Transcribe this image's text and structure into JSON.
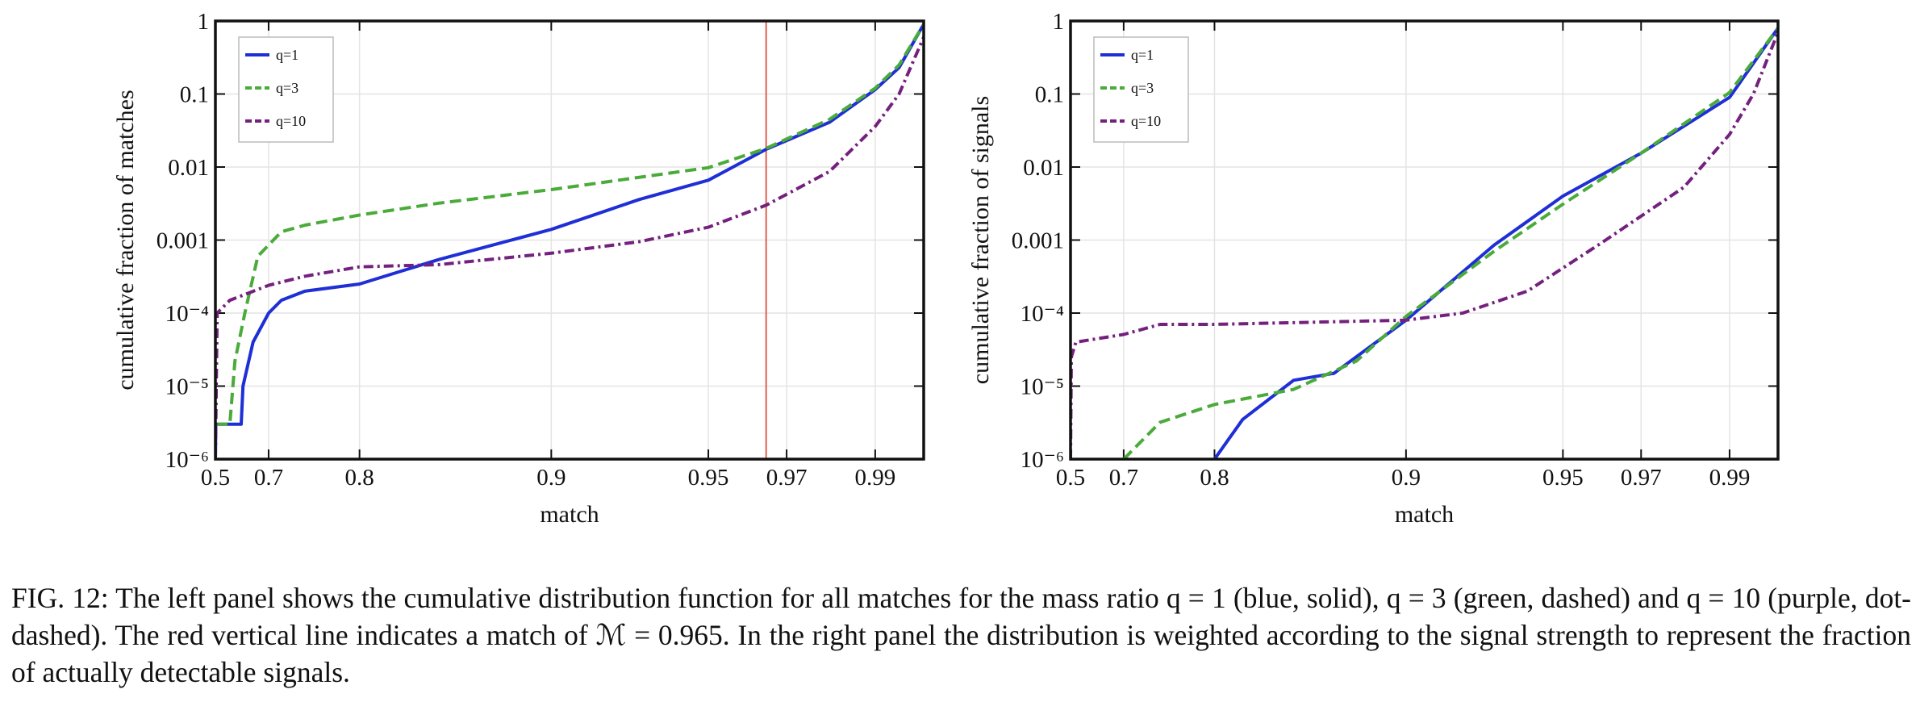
{
  "chart_data": [
    {
      "type": "line",
      "xlabel": "match",
      "ylabel": "cumulative fraction of matches",
      "xlim": [
        0.5,
        1
      ],
      "xscale": "power",
      "xpower": 7,
      "xticks": [
        0.5,
        0.7,
        0.8,
        0.9,
        0.95,
        0.97,
        0.99
      ],
      "ylim": [
        1e-06,
        1
      ],
      "yscale": "log",
      "yticks": [
        1,
        0.1,
        0.01,
        0.001,
        {
          "value": 0.0001,
          "label": "10⁻⁴"
        },
        {
          "value": 1e-05,
          "label": "10⁻⁵"
        },
        {
          "value": 1e-06,
          "label": "10⁻⁶"
        }
      ],
      "grid": true,
      "legend": "upper left",
      "vline": 0.965,
      "vline_color": "#e0503c",
      "series": [
        {
          "name": "q=1",
          "color": "#1f2fd6",
          "dash": "solid",
          "x": [
            0.5,
            0.505,
            0.64,
            0.645,
            0.67,
            0.7,
            0.72,
            0.75,
            0.8,
            0.85,
            0.9,
            0.93,
            0.95,
            0.965,
            0.98,
            0.99,
            0.995,
            1.0
          ],
          "values": [
            1e-06,
            3e-06,
            3e-06,
            1e-05,
            4e-05,
            0.0001,
            0.00015,
            0.0002,
            0.00025,
            0.00054,
            0.0014,
            0.0036,
            0.0066,
            0.0175,
            0.041,
            0.115,
            0.23,
            0.9
          ]
        },
        {
          "name": "q=3",
          "color": "#4aab3a",
          "dash": "dashed",
          "x": [
            0.51,
            0.6,
            0.62,
            0.65,
            0.68,
            0.72,
            0.75,
            0.8,
            0.85,
            0.9,
            0.95,
            0.965,
            0.98,
            0.99,
            0.995,
            1.0
          ],
          "values": [
            3e-06,
            3e-06,
            2.2e-05,
            0.0001,
            0.0006,
            0.0013,
            0.0016,
            0.0022,
            0.0032,
            0.0049,
            0.0098,
            0.018,
            0.045,
            0.12,
            0.25,
            0.9
          ]
        },
        {
          "name": "q=10",
          "color": "#74217e",
          "dash": "dotdash",
          "x": [
            0.5,
            0.52,
            0.6,
            0.7,
            0.75,
            0.8,
            0.85,
            0.9,
            0.93,
            0.95,
            0.965,
            0.98,
            0.99,
            0.995,
            1.0
          ],
          "values": [
            1e-06,
            0.0001,
            0.00015,
            0.00024,
            0.00032,
            0.00043,
            0.00046,
            0.00066,
            0.00095,
            0.0015,
            0.003,
            0.0087,
            0.036,
            0.1,
            0.6
          ]
        }
      ]
    },
    {
      "type": "line",
      "xlabel": "match",
      "ylabel": "cumulative fraction of signals",
      "xlim": [
        0.5,
        1
      ],
      "xscale": "power",
      "xpower": 7,
      "xticks": [
        0.5,
        0.7,
        0.8,
        0.9,
        0.95,
        0.97,
        0.99
      ],
      "ylim": [
        1e-06,
        1
      ],
      "yscale": "log",
      "yticks": [
        1,
        0.1,
        0.01,
        0.001,
        {
          "value": 0.0001,
          "label": "10⁻⁴"
        },
        {
          "value": 1e-05,
          "label": "10⁻⁵"
        },
        {
          "value": 1e-06,
          "label": "10⁻⁶"
        }
      ],
      "grid": true,
      "legend": "upper left",
      "series": [
        {
          "name": "q=1",
          "color": "#1f2fd6",
          "dash": "solid",
          "x": [
            0.8,
            0.82,
            0.85,
            0.87,
            0.9,
            0.93,
            0.95,
            0.97,
            0.99,
            1.0
          ],
          "values": [
            1e-06,
            3.5e-06,
            1.2e-05,
            1.5e-05,
            8e-05,
            0.00085,
            0.004,
            0.0155,
            0.09,
            0.8
          ]
        },
        {
          "name": "q=3",
          "color": "#4aab3a",
          "dash": "dashed",
          "x": [
            0.7,
            0.75,
            0.8,
            0.85,
            0.88,
            0.9,
            0.93,
            0.95,
            0.97,
            0.99,
            1.0
          ],
          "values": [
            1e-06,
            3.2e-06,
            5.6e-06,
            9e-06,
            2.2e-05,
            9e-05,
            0.0007,
            0.0031,
            0.0155,
            0.105,
            0.8
          ]
        },
        {
          "name": "q=10",
          "color": "#74217e",
          "dash": "dotdash",
          "x": [
            0.5,
            0.51,
            0.55,
            0.7,
            0.75,
            0.8,
            0.9,
            0.92,
            0.94,
            0.96,
            0.98,
            0.99,
            0.995,
            1.0
          ],
          "values": [
            1e-06,
            2.5e-05,
            4e-05,
            5.1e-05,
            7e-05,
            7e-05,
            8e-05,
            0.0001,
            0.0002,
            0.0009,
            0.0053,
            0.028,
            0.1,
            0.7
          ]
        }
      ]
    }
  ],
  "caption": "FIG. 12: The left panel shows the cumulative distribution function for all matches for the mass ratio q = 1 (blue, solid), q = 3 (green, dashed) and q = 10 (purple, dot-dashed). The red vertical line indicates a match of ℳ = 0.965. In the right panel the distribution is weighted according to the signal strength to represent the fraction of actually detectable signals."
}
